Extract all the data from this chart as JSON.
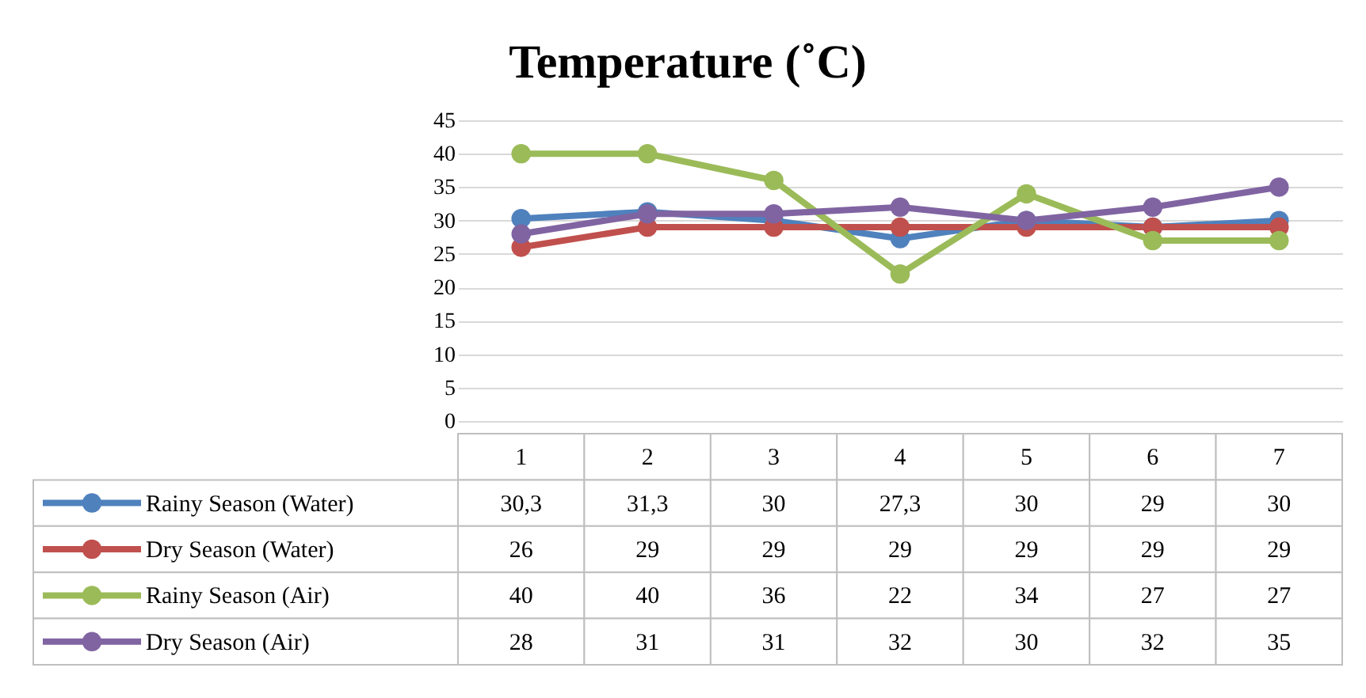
{
  "chart_data": {
    "type": "line",
    "title": "Temperature (˚C)",
    "categories": [
      "1",
      "2",
      "3",
      "4",
      "5",
      "6",
      "7"
    ],
    "ylim": [
      0,
      45
    ],
    "yticks": [
      0,
      5,
      10,
      15,
      20,
      25,
      30,
      35,
      40,
      45
    ],
    "grid": "y",
    "legend": "bottom",
    "marker": "circle",
    "line_style": "solid",
    "series": [
      {
        "name": "Rainy Season (Water)",
        "color": "#4f81bd",
        "values": [
          30.3,
          31.3,
          30,
          27.3,
          30,
          29,
          30
        ],
        "value_labels": [
          "30,3",
          "31,3",
          "30",
          "27,3",
          "30",
          "29",
          "30"
        ]
      },
      {
        "name": "Dry Season (Water)",
        "color": "#c0504d",
        "values": [
          26,
          29,
          29,
          29,
          29,
          29,
          29
        ],
        "value_labels": [
          "26",
          "29",
          "29",
          "29",
          "29",
          "29",
          "29"
        ]
      },
      {
        "name": "Rainy Season (Air)",
        "color": "#9bbb59",
        "values": [
          40,
          40,
          36,
          22,
          34,
          27,
          27
        ],
        "value_labels": [
          "40",
          "40",
          "36",
          "22",
          "34",
          "27",
          "27"
        ]
      },
      {
        "name": "Dry Season (Air)",
        "color": "#8064a2",
        "values": [
          28,
          31,
          31,
          32,
          30,
          32,
          35
        ],
        "value_labels": [
          "28",
          "31",
          "31",
          "32",
          "30",
          "32",
          "35"
        ]
      }
    ]
  }
}
